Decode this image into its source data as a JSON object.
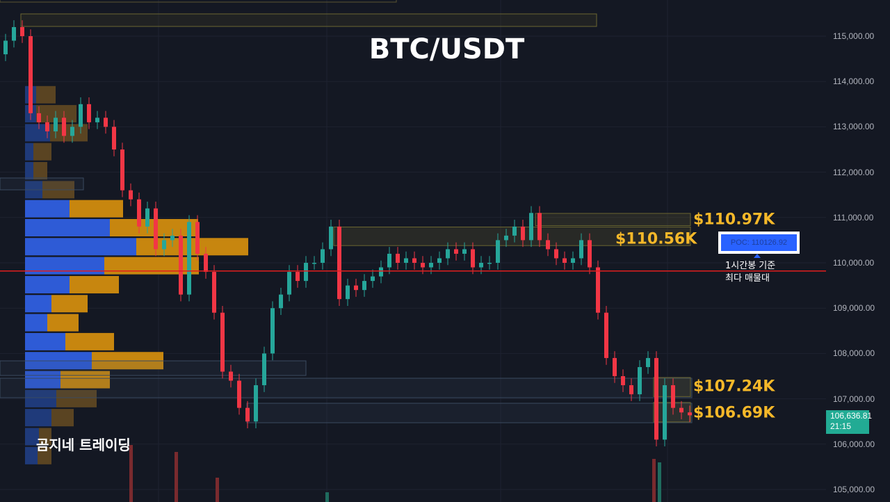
{
  "chart_data": {
    "type": "candlestick",
    "title": "BTC/USDT",
    "watermark": "곰지네 트레이딩",
    "ylim": [
      104700,
      115800
    ],
    "y_ticks": [
      "115,000.00",
      "114,000.00",
      "113,000.00",
      "112,000.00",
      "111,000.00",
      "110,000.00",
      "109,000.00",
      "108,000.00",
      "107,000.00",
      "106,000.00",
      "105,000.00"
    ],
    "y_tick_values": [
      115000,
      114000,
      113000,
      112000,
      111000,
      110000,
      109000,
      108000,
      107000,
      106000,
      105000
    ],
    "closes": [
      114900,
      115200,
      115000,
      113300,
      113100,
      112900,
      113200,
      112800,
      113000,
      113500,
      113100,
      113200,
      113000,
      112500,
      111600,
      111400,
      110800,
      111200,
      110300,
      110500,
      110600,
      109300,
      110900,
      110200,
      109800,
      108900,
      107600,
      107400,
      106800,
      106500,
      107300,
      108000,
      109000,
      109300,
      109800,
      109600,
      110000,
      110000,
      110300,
      110800,
      109200,
      109500,
      109400,
      109600,
      109700,
      109900,
      110200,
      110000,
      110100,
      110000,
      109900,
      110000,
      110100,
      110300,
      110200,
      110300,
      109900,
      110000,
      110000,
      110500,
      110600,
      110800,
      110500,
      111100,
      110500,
      110300,
      110100,
      110000,
      110100,
      110500,
      109900,
      108900,
      107900,
      107500,
      107300,
      107100,
      107700,
      107900,
      106100,
      107300,
      106800,
      106700,
      106636.81
    ],
    "first_open": 114600,
    "current_price": {
      "label": "106,636.81",
      "countdown": "21:15",
      "color": "#22ab94"
    },
    "colors": {
      "up": "#26a69a",
      "down": "#f23645",
      "background": "#141823",
      "poc_line": "#e01e1e",
      "zone_label": "#f5b829"
    },
    "volume_profile": {
      "bin_top_price": 113700,
      "bin_size": 419,
      "bins": [
        {
          "buy": 16,
          "sell": 28
        },
        {
          "buy": 16,
          "sell": 58
        },
        {
          "buy": 36,
          "sell": 54
        },
        {
          "buy": 12,
          "sell": 26
        },
        {
          "buy": 12,
          "sell": 20
        },
        {
          "buy": 25,
          "sell": 46
        },
        {
          "buy": 64,
          "sell": 77
        },
        {
          "buy": 122,
          "sell": 127
        },
        {
          "buy": 160,
          "sell": 161
        },
        {
          "buy": 114,
          "sell": 136
        },
        {
          "buy": 64,
          "sell": 71
        },
        {
          "buy": 38,
          "sell": 52
        },
        {
          "buy": 32,
          "sell": 45
        },
        {
          "buy": 58,
          "sell": 70
        },
        {
          "buy": 96,
          "sell": 103
        },
        {
          "buy": 51,
          "sell": 71
        },
        {
          "buy": 45,
          "sell": 58
        },
        {
          "buy": 38,
          "sell": 32
        },
        {
          "buy": 20,
          "sell": 18
        },
        {
          "buy": 18,
          "sell": 20
        }
      ]
    },
    "poc": {
      "label": "POC: 110126.92",
      "price": 110126.92,
      "note_line1": "1시간봉 기준",
      "note_line2": "최다 매물대"
    },
    "zones": [
      {
        "label": "$110.97K",
        "top": 111090,
        "bottom": 110820
      },
      {
        "label": "$110.56K",
        "top": 110790,
        "bottom": 110380
      },
      {
        "label": "$107.24K",
        "top": 107470,
        "bottom": 107050
      },
      {
        "label": "$106.69K",
        "top": 106920,
        "bottom": 106490
      }
    ]
  }
}
